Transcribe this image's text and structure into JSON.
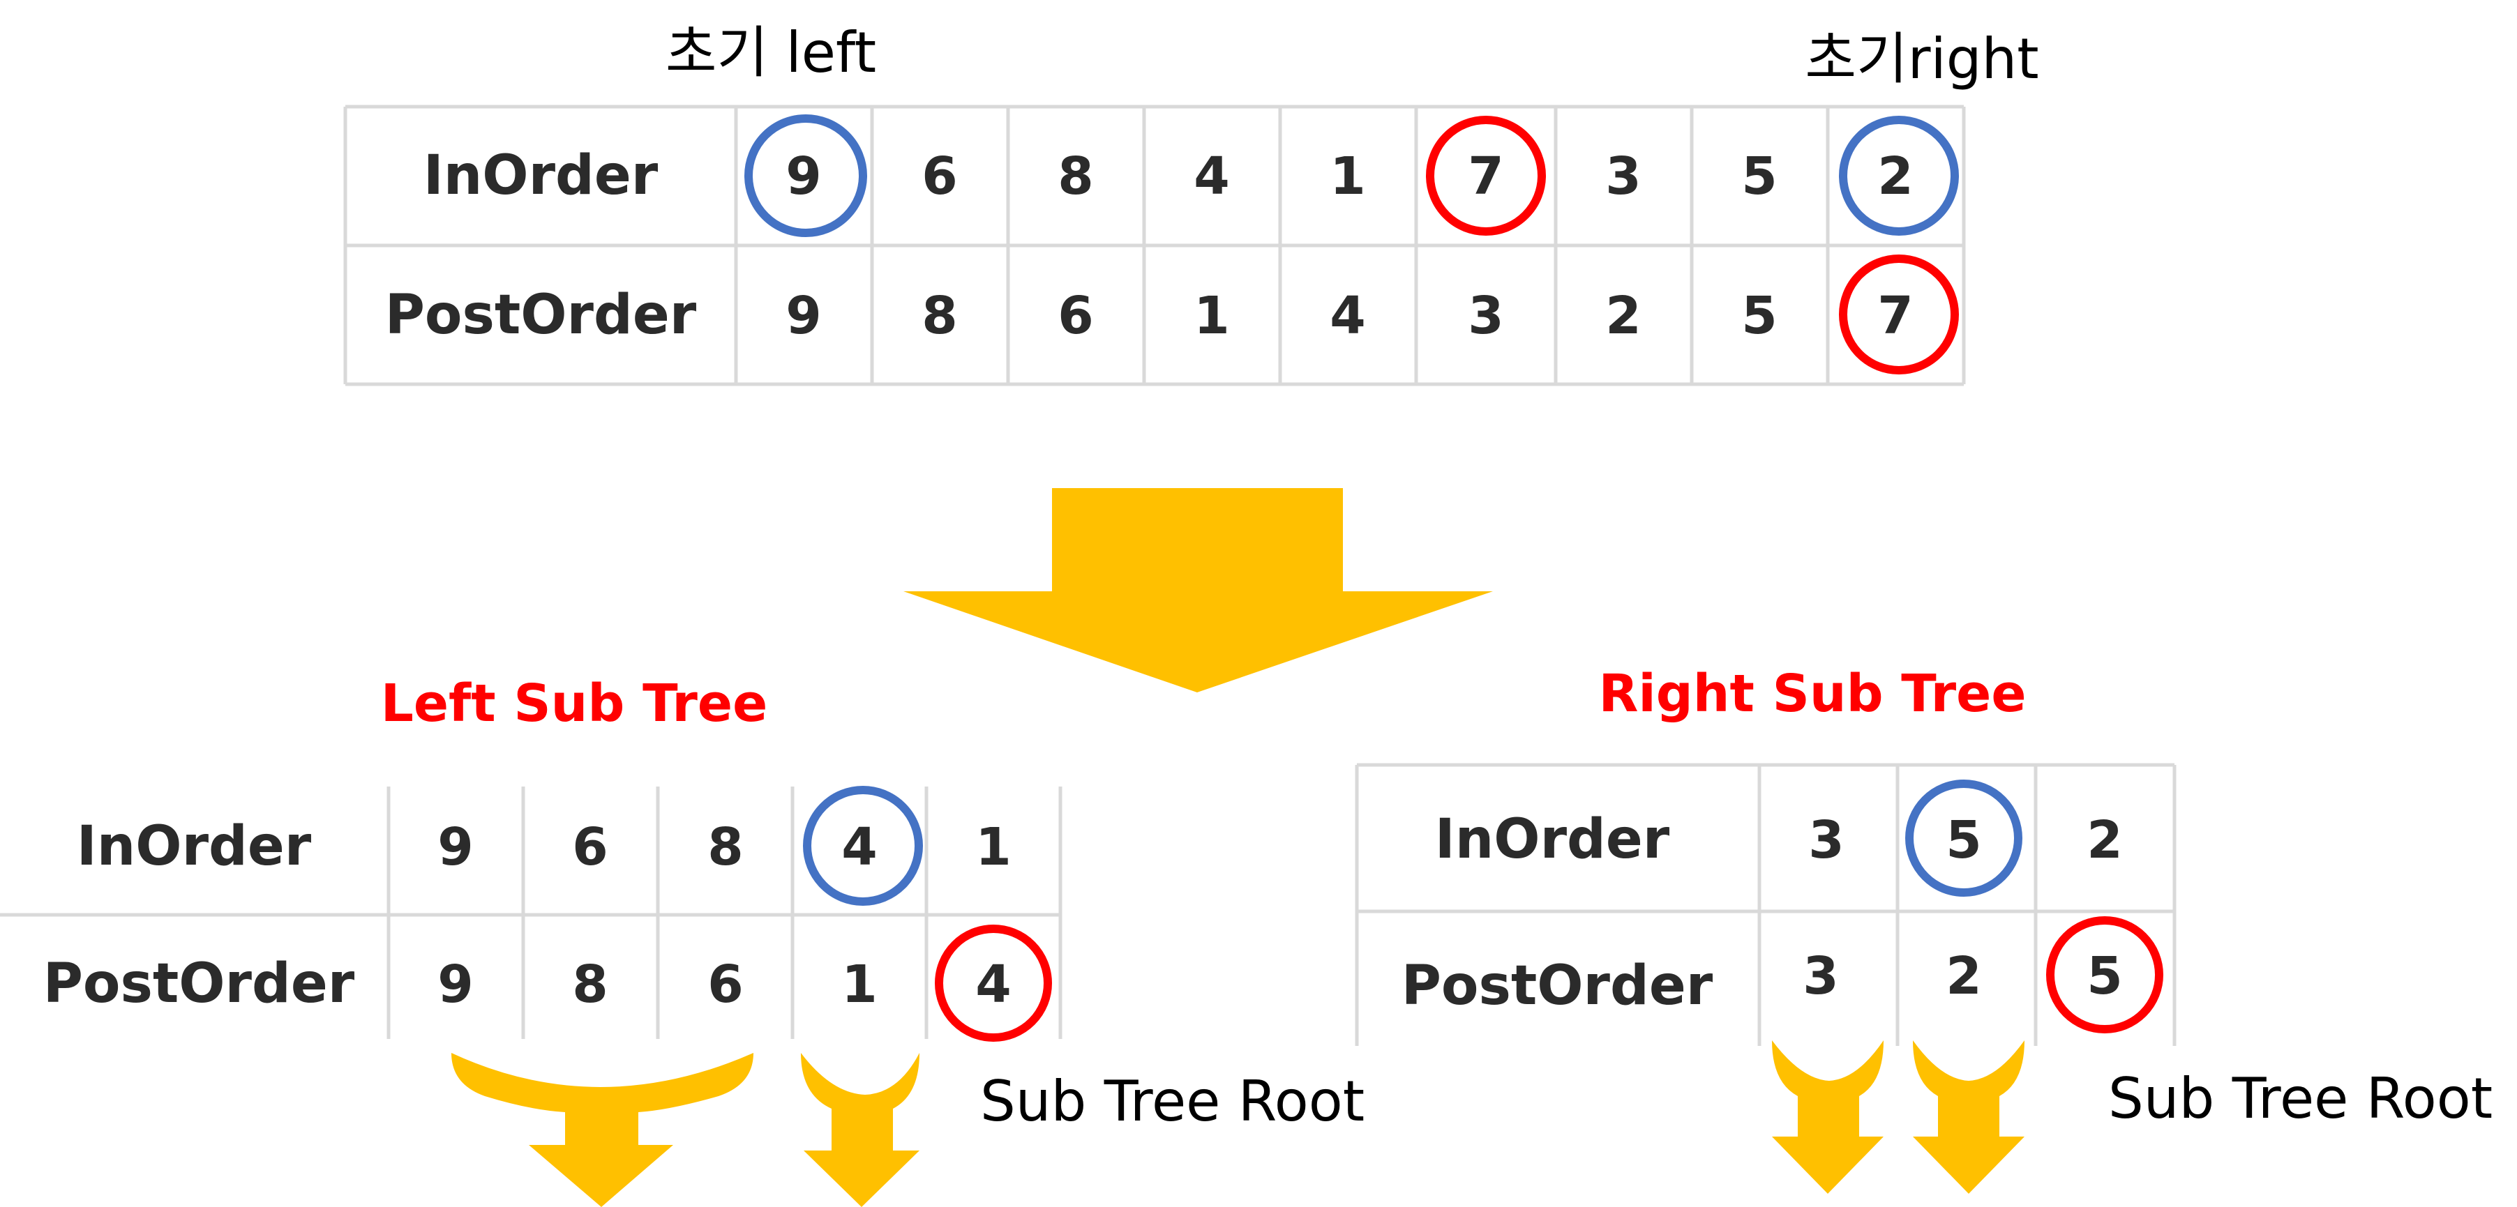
{
  "colors": {
    "grid": "#d9d9d9",
    "text": "#2b2b2b",
    "circle_blue": "#4472c4",
    "circle_red": "#ff0000",
    "arrow": "#ffc000",
    "title_red": "#ff0000"
  },
  "labels": {
    "initial_left": "초기 left",
    "initial_right": "초기right",
    "left_subtree_title": "Left Sub Tree",
    "right_subtree_title": "Right Sub Tree",
    "left_subroot_caption": "Sub Tree Root",
    "right_subroot_caption": "Sub Tree Root"
  },
  "main_table": {
    "rows": [
      {
        "header": "InOrder",
        "cells": [
          "9",
          "6",
          "8",
          "4",
          "1",
          "7",
          "3",
          "5",
          "2"
        ]
      },
      {
        "header": "PostOrder",
        "cells": [
          "9",
          "8",
          "6",
          "1",
          "4",
          "3",
          "2",
          "5",
          "7"
        ]
      }
    ],
    "circles": [
      {
        "row": 0,
        "col": 0,
        "color": "blue"
      },
      {
        "row": 0,
        "col": 5,
        "color": "red"
      },
      {
        "row": 0,
        "col": 8,
        "color": "blue"
      },
      {
        "row": 1,
        "col": 8,
        "color": "red"
      }
    ]
  },
  "left_table": {
    "rows": [
      {
        "header": "InOrder",
        "cells": [
          "9",
          "6",
          "8",
          "4",
          "1"
        ]
      },
      {
        "header": "PostOrder",
        "cells": [
          "9",
          "8",
          "6",
          "1",
          "4"
        ]
      }
    ],
    "circles": [
      {
        "row": 0,
        "col": 3,
        "color": "blue"
      },
      {
        "row": 1,
        "col": 4,
        "color": "red"
      }
    ]
  },
  "right_table": {
    "rows": [
      {
        "header": "InOrder",
        "cells": [
          "3",
          "5",
          "2"
        ]
      },
      {
        "header": "PostOrder",
        "cells": [
          "3",
          "2",
          "5"
        ]
      }
    ],
    "circles": [
      {
        "row": 0,
        "col": 1,
        "color": "blue"
      },
      {
        "row": 1,
        "col": 2,
        "color": "red"
      }
    ]
  }
}
